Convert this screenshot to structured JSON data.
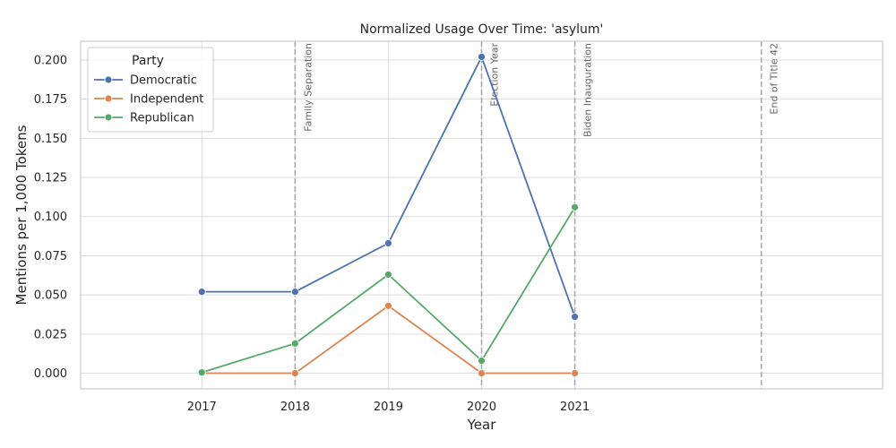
{
  "chart_data": {
    "type": "line",
    "title": "Normalized Usage Over Time: 'asylum'",
    "xlabel": "Year",
    "ylabel": "Mentions per 1,000 Tokens",
    "x": [
      2017,
      2018,
      2019,
      2020,
      2021
    ],
    "x_ticks": [
      "2017",
      "2018",
      "2019",
      "2020",
      "2021"
    ],
    "y_ticks": [
      "0.000",
      "0.025",
      "0.050",
      "0.075",
      "0.100",
      "0.125",
      "0.150",
      "0.175",
      "0.200"
    ],
    "xlim": [
      2015.7,
      2024.3
    ],
    "ylim": [
      -0.01,
      0.212
    ],
    "grid": true,
    "legend": {
      "title": "Party",
      "placement": "top-left"
    },
    "series": [
      {
        "name": "Democratic",
        "color": "#4c72b0",
        "values": [
          0.052,
          0.052,
          0.083,
          0.202,
          0.036
        ]
      },
      {
        "name": "Independent",
        "color": "#dd8452",
        "values": [
          0.0,
          0.0,
          0.043,
          0.0,
          0.0
        ]
      },
      {
        "name": "Republican",
        "color": "#55a868",
        "values": [
          0.0005,
          0.019,
          0.063,
          0.008,
          0.106
        ]
      }
    ],
    "events": [
      {
        "x": 2018,
        "label": "Family Separation"
      },
      {
        "x": 2020,
        "label": "Election Year"
      },
      {
        "x": 2021,
        "label": "Biden Inauguration"
      },
      {
        "x": 2023,
        "label": "End of Title 42"
      }
    ],
    "event_line_color": "#aaaaaa"
  }
}
